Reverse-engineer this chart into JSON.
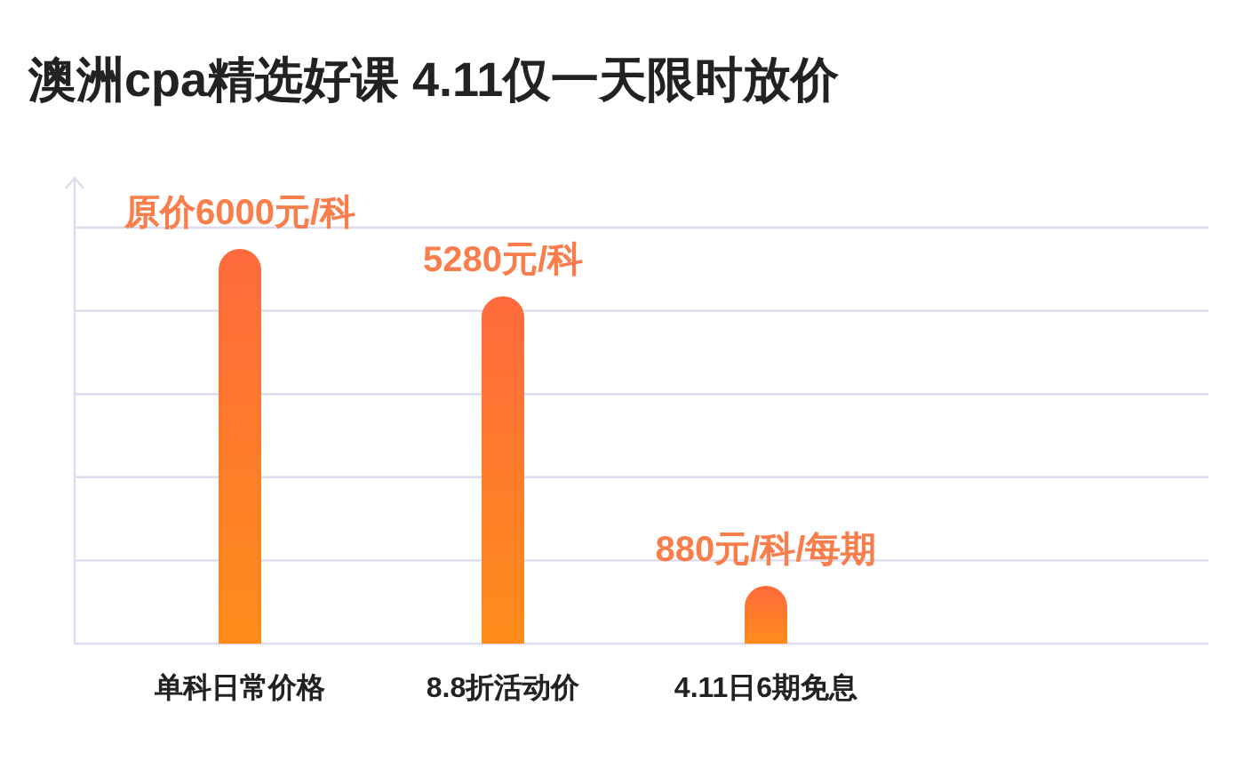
{
  "chart_data": {
    "type": "bar",
    "title": "澳洲cpa精选好课 4.11仅一天限时放价",
    "categories": [
      "单科日常价格",
      "8.8折活动价",
      "4.11日6期免息"
    ],
    "values": [
      6000,
      5280,
      880
    ],
    "value_labels": [
      "原价6000元/科",
      "5280元/科",
      "880元/科/每期"
    ],
    "color": "#ff6a3d",
    "grid": "y"
  }
}
